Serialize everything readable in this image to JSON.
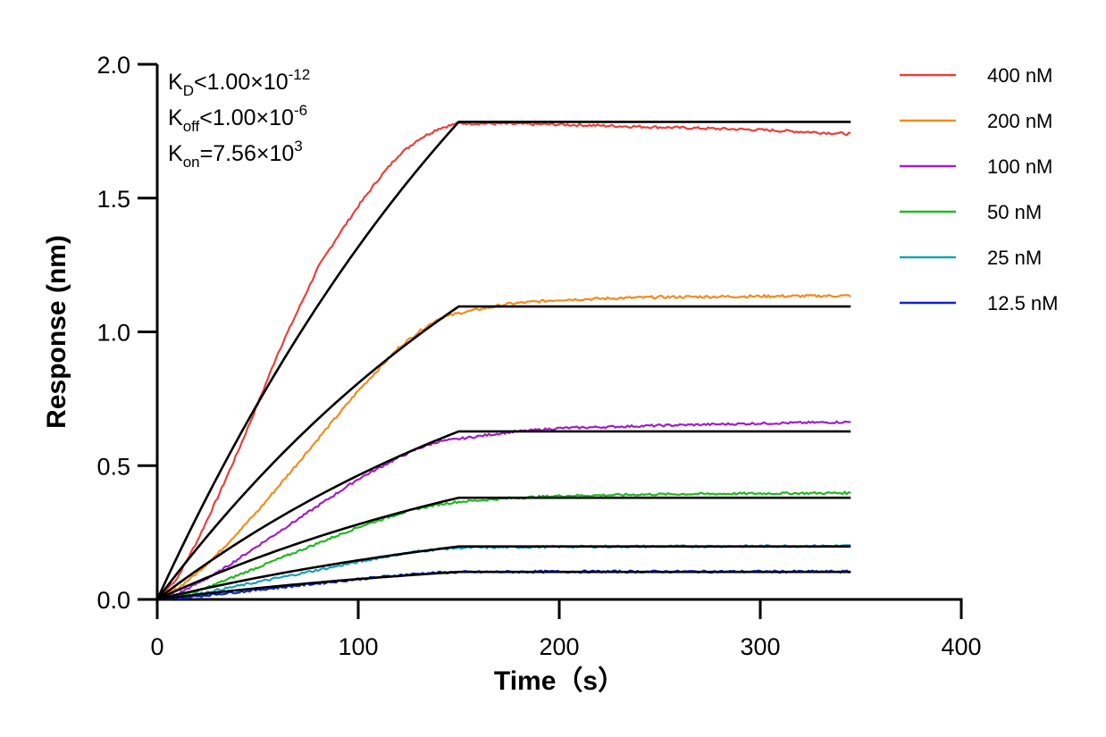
{
  "chart_data": {
    "type": "line",
    "title": "",
    "xlabel": "Time（s）",
    "ylabel": "Response (nm)",
    "xlim": [
      0,
      400
    ],
    "ylim": [
      0,
      2.0
    ],
    "x_ticks": [
      "0",
      "100",
      "200",
      "300",
      "400"
    ],
    "y_ticks": [
      "0.0",
      "0.5",
      "1.0",
      "1.5",
      "2.0"
    ],
    "grid": false,
    "legend_position": "top-right",
    "annotations": [
      {
        "main": "K",
        "sub": "D",
        "rest": "<1.00×10",
        "sup": "-12"
      },
      {
        "main": "K",
        "sub": "off",
        "rest": "<1.00×10",
        "sup": "-6"
      },
      {
        "main": "K",
        "sub": "on",
        "rest": "=7.56×10",
        "sup": "3"
      }
    ],
    "association_end": 150,
    "time_end": 345,
    "series": [
      {
        "name": "400 nM",
        "color": "#e8413c",
        "fit_plateau": 1.785,
        "data_end": 1.74,
        "measured": [
          [
            0,
            0
          ],
          [
            10,
            0.08
          ],
          [
            20,
            0.22
          ],
          [
            30,
            0.38
          ],
          [
            40,
            0.55
          ],
          [
            50,
            0.73
          ],
          [
            60,
            0.92
          ],
          [
            70,
            1.08
          ],
          [
            80,
            1.24
          ],
          [
            90,
            1.36
          ],
          [
            100,
            1.47
          ],
          [
            110,
            1.57
          ],
          [
            120,
            1.66
          ],
          [
            130,
            1.72
          ],
          [
            140,
            1.76
          ],
          [
            150,
            1.78
          ],
          [
            200,
            1.775
          ],
          [
            250,
            1.765
          ],
          [
            300,
            1.755
          ],
          [
            345,
            1.74
          ]
        ]
      },
      {
        "name": "200 nM",
        "color": "#f28c1e",
        "fit_plateau": 1.095,
        "data_end": 1.135,
        "measured": [
          [
            0,
            0
          ],
          [
            10,
            0.04
          ],
          [
            20,
            0.1
          ],
          [
            30,
            0.17
          ],
          [
            40,
            0.25
          ],
          [
            50,
            0.33
          ],
          [
            60,
            0.42
          ],
          [
            70,
            0.51
          ],
          [
            80,
            0.6
          ],
          [
            90,
            0.69
          ],
          [
            100,
            0.78
          ],
          [
            110,
            0.86
          ],
          [
            120,
            0.94
          ],
          [
            130,
            1.0
          ],
          [
            140,
            1.05
          ],
          [
            150,
            1.07
          ],
          [
            175,
            1.105
          ],
          [
            200,
            1.12
          ],
          [
            250,
            1.13
          ],
          [
            300,
            1.133
          ],
          [
            345,
            1.135
          ]
        ]
      },
      {
        "name": "100 nM",
        "color": "#a020c8",
        "fit_plateau": 0.628,
        "data_end": 0.663,
        "measured": [
          [
            0,
            0
          ],
          [
            10,
            0.02
          ],
          [
            20,
            0.06
          ],
          [
            30,
            0.1
          ],
          [
            40,
            0.15
          ],
          [
            50,
            0.2
          ],
          [
            60,
            0.25
          ],
          [
            70,
            0.3
          ],
          [
            80,
            0.35
          ],
          [
            90,
            0.4
          ],
          [
            100,
            0.45
          ],
          [
            110,
            0.49
          ],
          [
            120,
            0.53
          ],
          [
            130,
            0.565
          ],
          [
            140,
            0.59
          ],
          [
            150,
            0.6
          ],
          [
            175,
            0.625
          ],
          [
            200,
            0.64
          ],
          [
            250,
            0.65
          ],
          [
            300,
            0.658
          ],
          [
            345,
            0.663
          ]
        ]
      },
      {
        "name": "50 nM",
        "color": "#22b822",
        "fit_plateau": 0.38,
        "data_end": 0.398,
        "measured": [
          [
            0,
            0
          ],
          [
            10,
            0.01
          ],
          [
            20,
            0.03
          ],
          [
            30,
            0.06
          ],
          [
            40,
            0.09
          ],
          [
            50,
            0.12
          ],
          [
            60,
            0.15
          ],
          [
            70,
            0.18
          ],
          [
            80,
            0.21
          ],
          [
            90,
            0.24
          ],
          [
            100,
            0.27
          ],
          [
            110,
            0.295
          ],
          [
            120,
            0.32
          ],
          [
            130,
            0.34
          ],
          [
            140,
            0.355
          ],
          [
            150,
            0.365
          ],
          [
            175,
            0.378
          ],
          [
            200,
            0.387
          ],
          [
            250,
            0.393
          ],
          [
            300,
            0.396
          ],
          [
            345,
            0.398
          ]
        ]
      },
      {
        "name": "25 nM",
        "color": "#1aa0b4",
        "fit_plateau": 0.198,
        "data_end": 0.2,
        "measured": [
          [
            0,
            0
          ],
          [
            10,
            0.01
          ],
          [
            20,
            0.02
          ],
          [
            30,
            0.035
          ],
          [
            40,
            0.05
          ],
          [
            50,
            0.065
          ],
          [
            60,
            0.08
          ],
          [
            70,
            0.095
          ],
          [
            80,
            0.11
          ],
          [
            90,
            0.125
          ],
          [
            100,
            0.14
          ],
          [
            110,
            0.155
          ],
          [
            120,
            0.168
          ],
          [
            130,
            0.18
          ],
          [
            140,
            0.188
          ],
          [
            150,
            0.193
          ],
          [
            200,
            0.197
          ],
          [
            250,
            0.198
          ],
          [
            300,
            0.199
          ],
          [
            345,
            0.2
          ]
        ]
      },
      {
        "name": "12.5 nM",
        "color": "#1020d0",
        "fit_plateau": 0.103,
        "data_end": 0.104,
        "measured": [
          [
            0,
            0
          ],
          [
            10,
            0.005
          ],
          [
            20,
            0.012
          ],
          [
            30,
            0.02
          ],
          [
            40,
            0.028
          ],
          [
            50,
            0.036
          ],
          [
            60,
            0.044
          ],
          [
            70,
            0.052
          ],
          [
            80,
            0.06
          ],
          [
            90,
            0.068
          ],
          [
            100,
            0.076
          ],
          [
            110,
            0.083
          ],
          [
            120,
            0.09
          ],
          [
            130,
            0.096
          ],
          [
            140,
            0.1
          ],
          [
            150,
            0.102
          ],
          [
            200,
            0.104
          ],
          [
            250,
            0.104
          ],
          [
            300,
            0.104
          ],
          [
            345,
            0.104
          ]
        ]
      }
    ]
  }
}
